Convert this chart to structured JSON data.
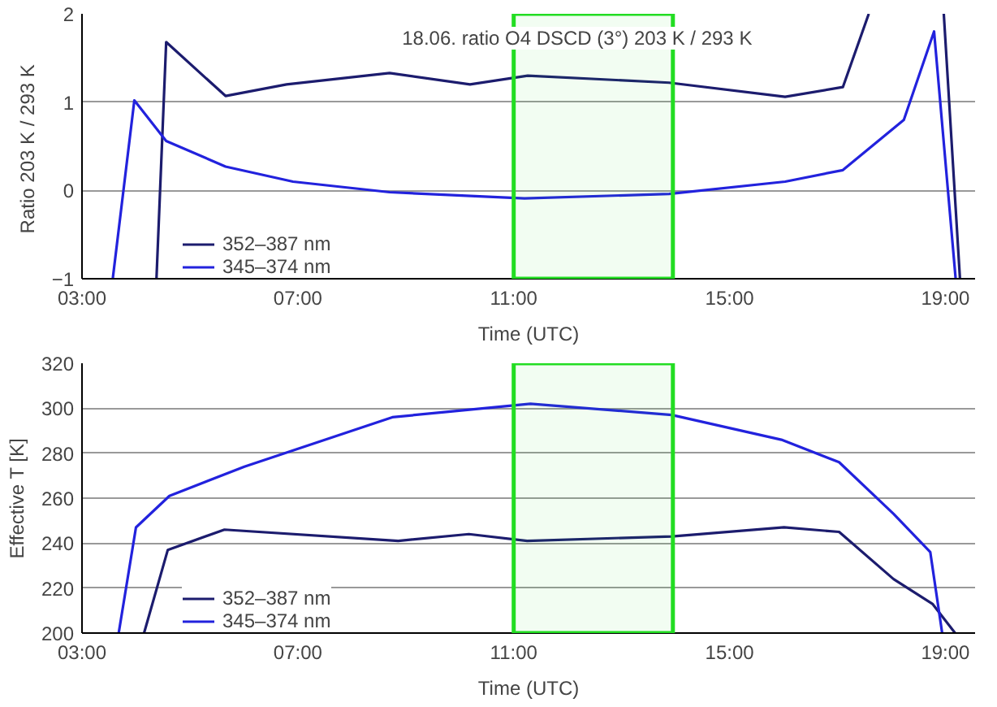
{
  "chart_data": [
    {
      "type": "line",
      "ylabel": "Ratio  203 K / 293 K",
      "xlabel": "Time (UTC)",
      "annotations": [
        "18.06. ratio O4 DSCD (3°) 203 K / 293 K"
      ],
      "xlim": [
        3,
        19.55
      ],
      "xticks": [
        {
          "value": 3,
          "label": "03:00"
        },
        {
          "value": 7,
          "label": "07:00"
        },
        {
          "value": 11,
          "label": "11:00"
        },
        {
          "value": 15,
          "label": "15:00"
        },
        {
          "value": 19,
          "label": "19:00"
        }
      ],
      "ylim": [
        -1,
        2
      ],
      "yticks": [
        -1,
        0,
        1,
        2
      ],
      "grid": "y",
      "legend": "bottom left",
      "marker": "none",
      "line_style": "solid",
      "bands": [
        {
          "axis": "x",
          "from": 11,
          "to": 13.95,
          "color": "#22dd22"
        }
      ],
      "series": [
        {
          "name": "352–387 nm",
          "color": "#1c1c6e",
          "x": [
            4.38,
            4.56,
            5.66,
            6.79,
            8.7,
            10.19,
            11.26,
            13.88,
            16.03,
            17.1,
            17.58,
            18.3,
            18.97,
            19.27
          ],
          "values": [
            -1,
            1.68,
            1.07,
            1.2,
            1.33,
            1.2,
            1.3,
            1.22,
            1.06,
            1.17,
            2,
            null,
            2,
            -1
          ]
        },
        {
          "name": "345–374 nm",
          "color": "#2222dd",
          "x": [
            3.57,
            3.97,
            4.56,
            5.66,
            6.91,
            8.7,
            11.2,
            13.88,
            16.03,
            17.1,
            18.23,
            18.79,
            19.19
          ],
          "values": [
            -1,
            1.02,
            0.56,
            0.27,
            0.1,
            -0.02,
            -0.09,
            -0.04,
            0.1,
            0.23,
            0.8,
            1.8,
            -1
          ]
        }
      ]
    },
    {
      "type": "line",
      "ylabel": "Effective T [K]",
      "xlabel": "Time (UTC)",
      "xlim": [
        3,
        19.55
      ],
      "xticks": [
        {
          "value": 3,
          "label": "03:00"
        },
        {
          "value": 7,
          "label": "07:00"
        },
        {
          "value": 11,
          "label": "11:00"
        },
        {
          "value": 15,
          "label": "15:00"
        },
        {
          "value": 19,
          "label": "19:00"
        }
      ],
      "ylim": [
        200,
        320
      ],
      "yticks": [
        200,
        220,
        240,
        260,
        280,
        300,
        320
      ],
      "grid": "y",
      "legend": "bottom left",
      "marker": "none",
      "line_style": "solid",
      "bands": [
        {
          "axis": "x",
          "from": 11,
          "to": 13.95,
          "color": "#22dd22"
        }
      ],
      "series": [
        {
          "name": "352–387 nm",
          "color": "#1c1c6e",
          "x": [
            4.15,
            4.59,
            5.64,
            8.86,
            10.17,
            11.25,
            13.93,
            16.01,
            17.03,
            18.04,
            18.76,
            19.18
          ],
          "values": [
            200,
            237,
            246,
            241,
            244,
            241,
            243,
            247,
            245,
            224,
            213,
            200
          ]
        },
        {
          "name": "345–374 nm",
          "color": "#2222dd",
          "x": [
            3.68,
            4.0,
            4.62,
            6.01,
            8.75,
            11.31,
            13.93,
            15.96,
            17.03,
            18.04,
            18.72,
            18.94
          ],
          "values": [
            200,
            247,
            261,
            274,
            296,
            302,
            297,
            286,
            276,
            253,
            236,
            200
          ]
        }
      ]
    }
  ]
}
